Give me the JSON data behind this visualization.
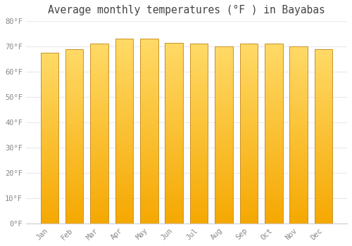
{
  "months": [
    "Jan",
    "Feb",
    "Mar",
    "Apr",
    "May",
    "Jun",
    "Jul",
    "Aug",
    "Sep",
    "Oct",
    "Nov",
    "Dec"
  ],
  "values": [
    67.5,
    69.0,
    71.0,
    73.0,
    73.0,
    71.5,
    71.0,
    70.0,
    71.0,
    71.0,
    70.0,
    69.0
  ],
  "title": "Average monthly temperatures (°F ) in Bayabas",
  "ylim": [
    0,
    80
  ],
  "yticks": [
    0,
    10,
    20,
    30,
    40,
    50,
    60,
    70,
    80
  ],
  "ytick_labels": [
    "0°F",
    "10°F",
    "20°F",
    "30°F",
    "40°F",
    "50°F",
    "60°F",
    "70°F",
    "80°F"
  ],
  "bar_color_bottom": "#F5A800",
  "bar_color_top": "#FFD966",
  "background_color": "#FFFFFF",
  "grid_color": "#E8E8F0",
  "title_fontsize": 10.5,
  "tick_fontsize": 7.5,
  "bar_edge_color": "#C8922A",
  "bar_width": 0.72
}
